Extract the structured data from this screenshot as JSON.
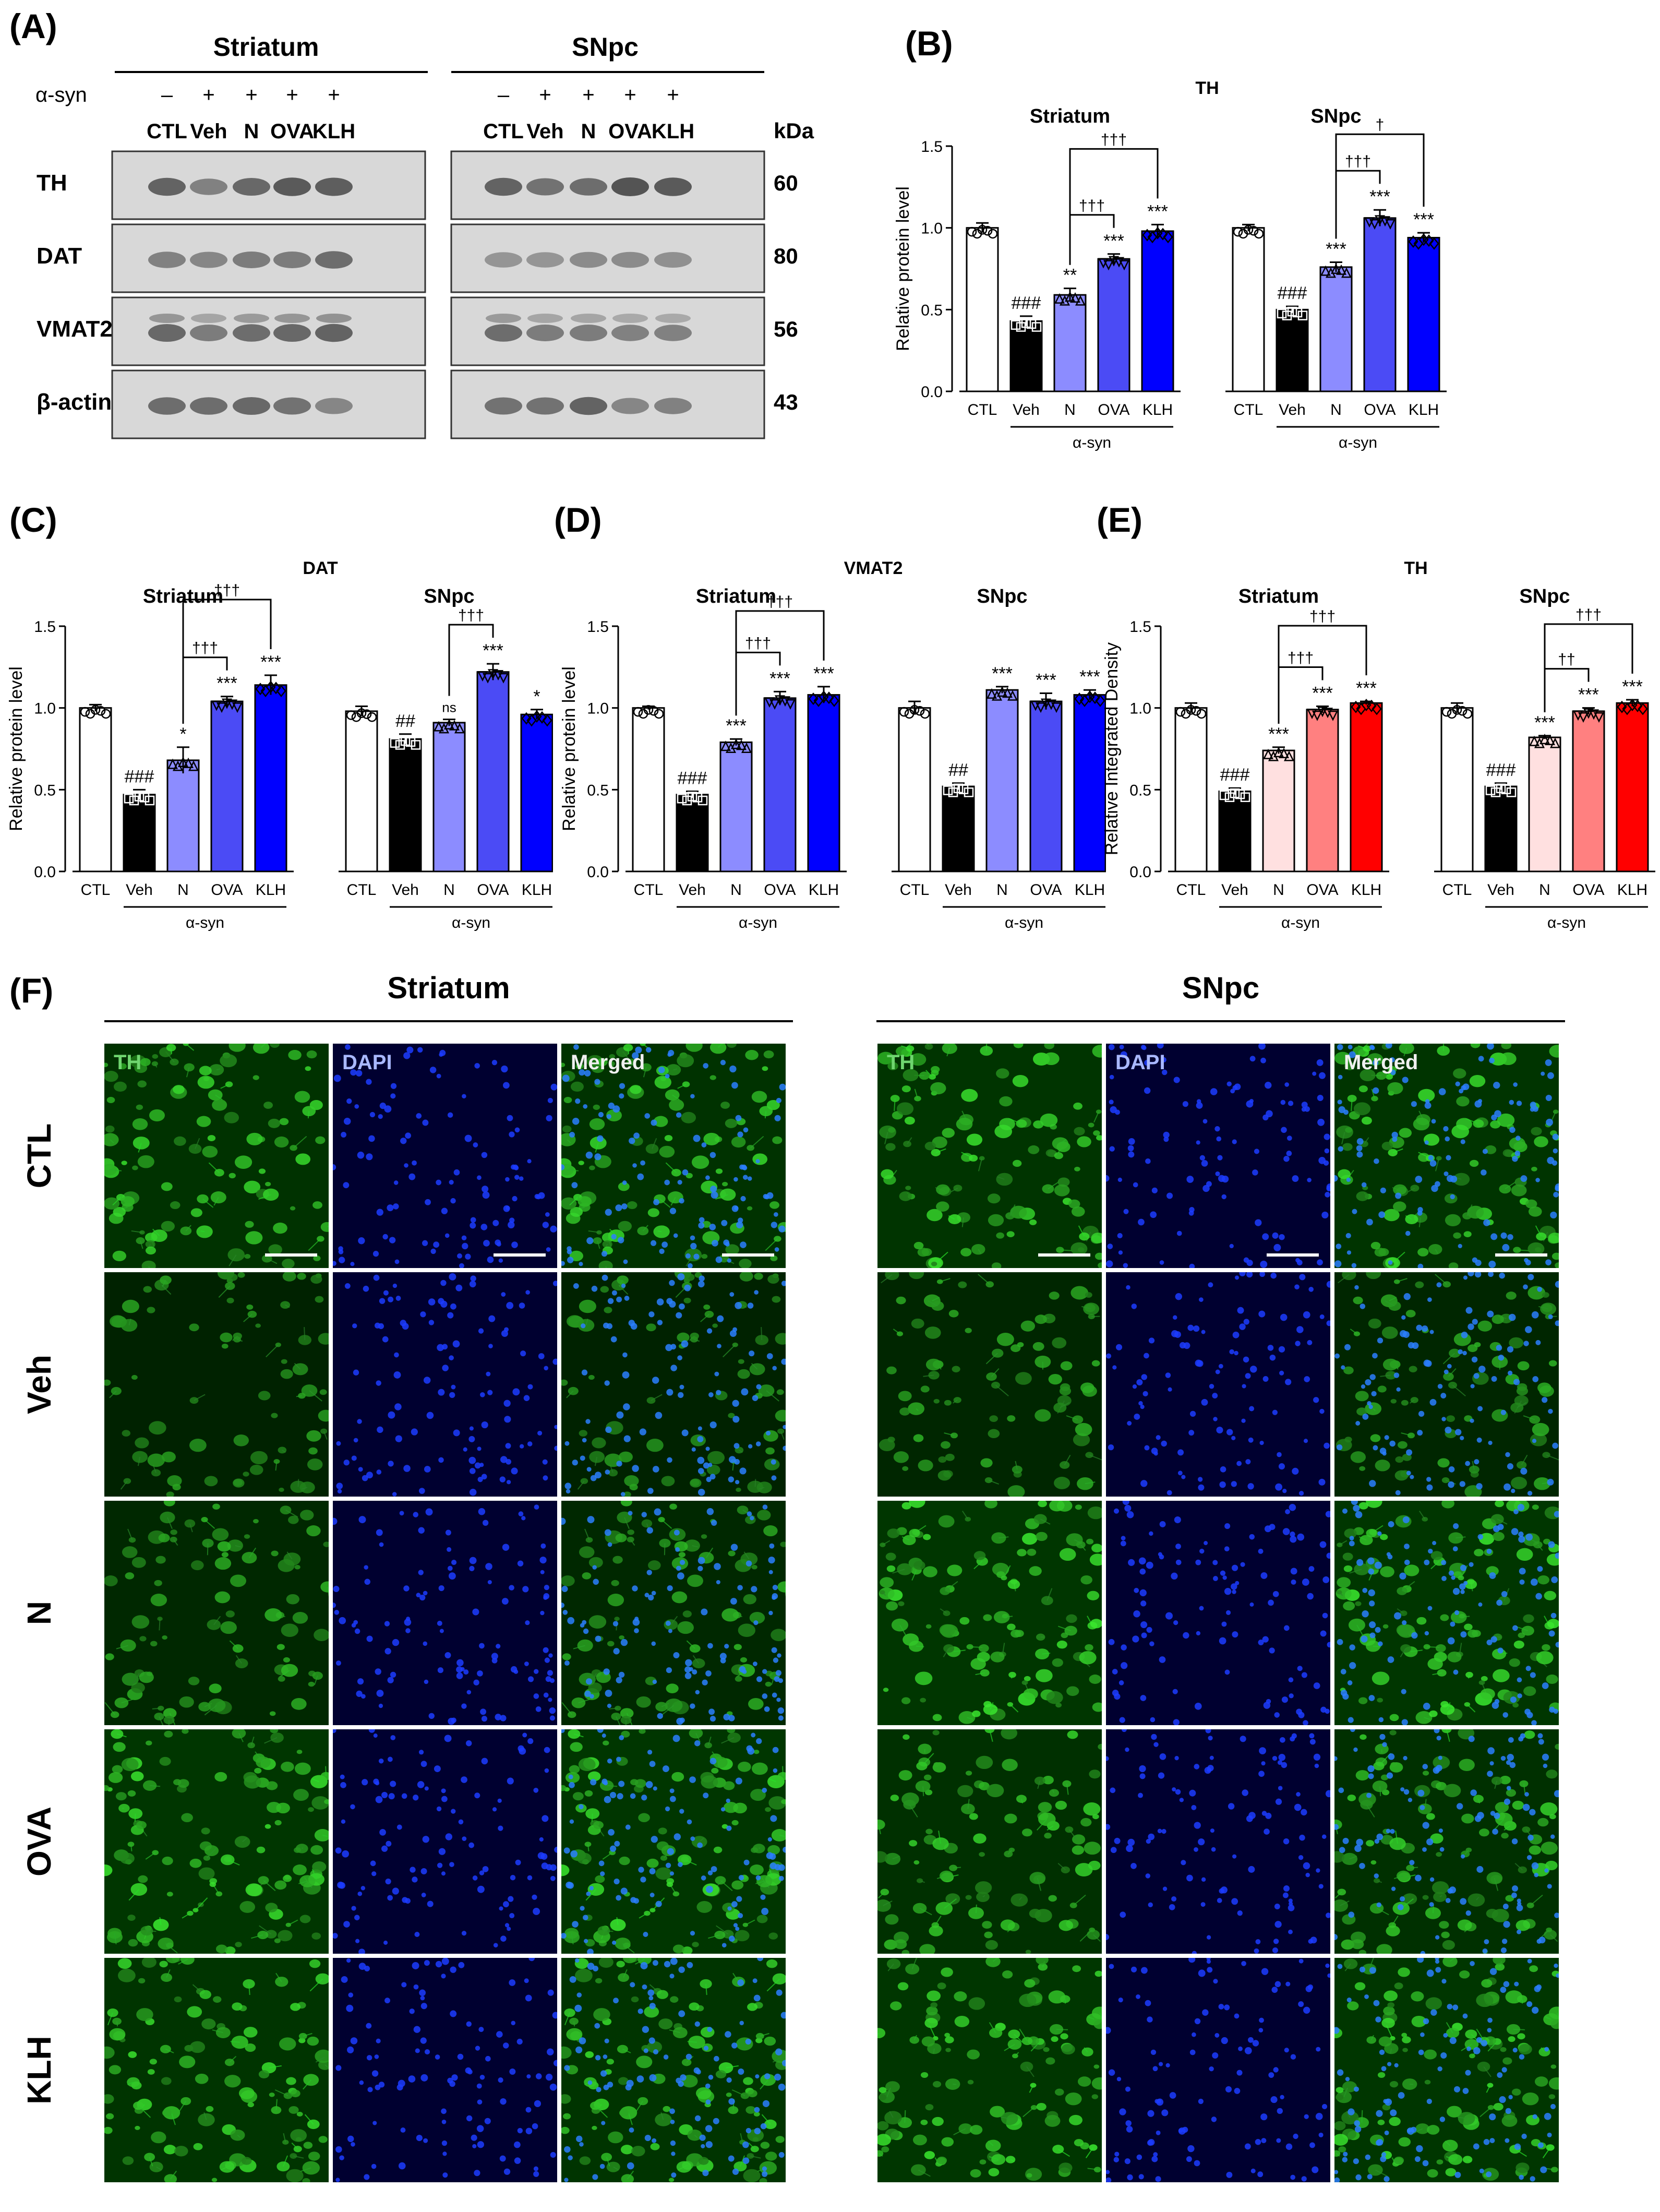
{
  "panels": {
    "A": "(A)",
    "B": "(B)",
    "C": "(C)",
    "D": "(D)",
    "E": "(E)",
    "F": "(F)"
  },
  "western": {
    "region_left": "Striatum",
    "region_right": "SNpc",
    "treatment_label": "α-syn",
    "treatment_signs": [
      "–",
      "+",
      "+",
      "+",
      "+"
    ],
    "lanes": [
      "CTL",
      "Veh",
      "N",
      "OVA",
      "KLH"
    ],
    "kda_header": "kDa",
    "proteins": [
      {
        "name": "TH",
        "kda": "60"
      },
      {
        "name": "DAT",
        "kda": "80"
      },
      {
        "name": "VMAT2",
        "kda": "56"
      },
      {
        "name": "β-actin",
        "kda": "43"
      }
    ]
  },
  "chart_data": [
    {
      "panel": "B",
      "type": "bar",
      "title": "TH",
      "ylabel": "Relative protein level",
      "ylim": [
        0,
        1.5
      ],
      "yticks": [
        "0.0",
        "0.5",
        "1.0",
        "1.5"
      ],
      "group_label": "α-syn",
      "groups": [
        {
          "name": "Striatum",
          "categories": [
            "CTL",
            "Veh",
            "N",
            "OVA",
            "KLH"
          ],
          "values": [
            1.0,
            0.43,
            0.59,
            0.81,
            0.98
          ],
          "errors": [
            0.03,
            0.03,
            0.04,
            0.03,
            0.04
          ],
          "marks": [
            "",
            "###",
            "**",
            "***",
            "***"
          ]
        },
        {
          "name": "SNpc",
          "categories": [
            "CTL",
            "Veh",
            "N",
            "OVA",
            "KLH"
          ],
          "values": [
            1.0,
            0.5,
            0.76,
            1.06,
            0.94
          ],
          "errors": [
            0.02,
            0.02,
            0.03,
            0.05,
            0.03
          ],
          "marks": [
            "",
            "###",
            "***",
            "***",
            "***"
          ]
        }
      ],
      "brackets": [
        {
          "group": 0,
          "from": 2,
          "to": [
            3,
            4
          ],
          "labels": [
            "†††",
            "†††"
          ]
        },
        {
          "group": 1,
          "from": 2,
          "to": [
            3,
            4
          ],
          "labels": [
            "†††",
            "†"
          ]
        }
      ]
    },
    {
      "panel": "C",
      "type": "bar",
      "title": "DAT",
      "ylabel": "Relative protein level",
      "ylim": [
        0,
        1.5
      ],
      "yticks": [
        "0.0",
        "0.5",
        "1.0",
        "1.5"
      ],
      "group_label": "α-syn",
      "groups": [
        {
          "name": "Striatum",
          "categories": [
            "CTL",
            "Veh",
            "N",
            "OVA",
            "KLH"
          ],
          "values": [
            1.0,
            0.47,
            0.68,
            1.04,
            1.14
          ],
          "errors": [
            0.02,
            0.03,
            0.08,
            0.03,
            0.06
          ],
          "marks": [
            "",
            "###",
            "*",
            "***",
            "***"
          ]
        },
        {
          "name": "SNpc",
          "categories": [
            "CTL",
            "Veh",
            "N",
            "OVA",
            "KLH"
          ],
          "values": [
            0.98,
            0.81,
            0.91,
            1.22,
            0.96
          ],
          "errors": [
            0.03,
            0.03,
            0.02,
            0.05,
            0.03
          ],
          "marks": [
            "",
            "##",
            "ns",
            "***",
            "*"
          ]
        }
      ],
      "brackets": [
        {
          "group": 0,
          "from": 2,
          "to": [
            3,
            4
          ],
          "labels": [
            "†††",
            "†††"
          ]
        },
        {
          "group": 1,
          "from": 2,
          "to": [
            3
          ],
          "labels": [
            "†††"
          ]
        }
      ]
    },
    {
      "panel": "D",
      "type": "bar",
      "title": "VMAT2",
      "ylabel": "Relative protein level",
      "ylim": [
        0,
        1.5
      ],
      "yticks": [
        "0.0",
        "0.5",
        "1.0",
        "1.5"
      ],
      "group_label": "α-syn",
      "groups": [
        {
          "name": "Striatum",
          "categories": [
            "CTL",
            "Veh",
            "N",
            "OVA",
            "KLH"
          ],
          "values": [
            1.0,
            0.47,
            0.79,
            1.06,
            1.08
          ],
          "errors": [
            0.01,
            0.02,
            0.02,
            0.04,
            0.05
          ],
          "marks": [
            "",
            "###",
            "***",
            "***",
            "***"
          ]
        },
        {
          "name": "SNpc",
          "categories": [
            "CTL",
            "Veh",
            "N",
            "OVA",
            "KLH"
          ],
          "values": [
            1.0,
            0.52,
            1.11,
            1.04,
            1.08
          ],
          "errors": [
            0.04,
            0.02,
            0.02,
            0.05,
            0.03
          ],
          "marks": [
            "",
            "##",
            "***",
            "***",
            "***"
          ]
        }
      ],
      "brackets": [
        {
          "group": 0,
          "from": 2,
          "to": [
            3,
            4
          ],
          "labels": [
            "†††",
            "†††"
          ]
        }
      ]
    },
    {
      "panel": "E",
      "type": "bar",
      "title": "TH",
      "ylabel": "Relative Integrated Density",
      "ylim": [
        0,
        1.5
      ],
      "yticks": [
        "0.0",
        "0.5",
        "1.0",
        "1.5"
      ],
      "group_label": "α-syn",
      "groups": [
        {
          "name": "Striatum",
          "categories": [
            "CTL",
            "Veh",
            "N",
            "OVA",
            "KLH"
          ],
          "values": [
            1.0,
            0.49,
            0.74,
            0.99,
            1.03
          ],
          "errors": [
            0.03,
            0.02,
            0.02,
            0.02,
            0.01
          ],
          "marks": [
            "",
            "###",
            "***",
            "***",
            "***"
          ]
        },
        {
          "name": "SNpc",
          "categories": [
            "CTL",
            "Veh",
            "N",
            "OVA",
            "KLH"
          ],
          "values": [
            1.0,
            0.52,
            0.82,
            0.98,
            1.03
          ],
          "errors": [
            0.03,
            0.02,
            0.01,
            0.02,
            0.02
          ],
          "marks": [
            "",
            "###",
            "***",
            "***",
            "***"
          ]
        }
      ],
      "brackets": [
        {
          "group": 0,
          "from": 2,
          "to": [
            3,
            4
          ],
          "labels": [
            "†††",
            "†††"
          ]
        },
        {
          "group": 1,
          "from": 2,
          "to": [
            3,
            4
          ],
          "labels": [
            "††",
            "†††"
          ]
        }
      ]
    }
  ],
  "colors": {
    "blue_scale": [
      "#ffffff",
      "#000000",
      "#8c8cff",
      "#4b4bf5",
      "#0000ff"
    ],
    "red_scale": [
      "#ffffff",
      "#000000",
      "#ffe0e0",
      "#ff8080",
      "#ff0000"
    ]
  },
  "micrographs": {
    "region_left": "Striatum",
    "region_right": "SNpc",
    "channels": [
      "TH",
      "DAPI",
      "Merged"
    ],
    "rows": [
      "CTL",
      "Veh",
      "N",
      "OVA",
      "KLH"
    ],
    "green_intensity": {
      "striatum": [
        0.75,
        0.35,
        0.5,
        0.85,
        0.8
      ],
      "snpc": [
        0.8,
        0.45,
        0.85,
        0.7,
        0.85
      ]
    }
  }
}
